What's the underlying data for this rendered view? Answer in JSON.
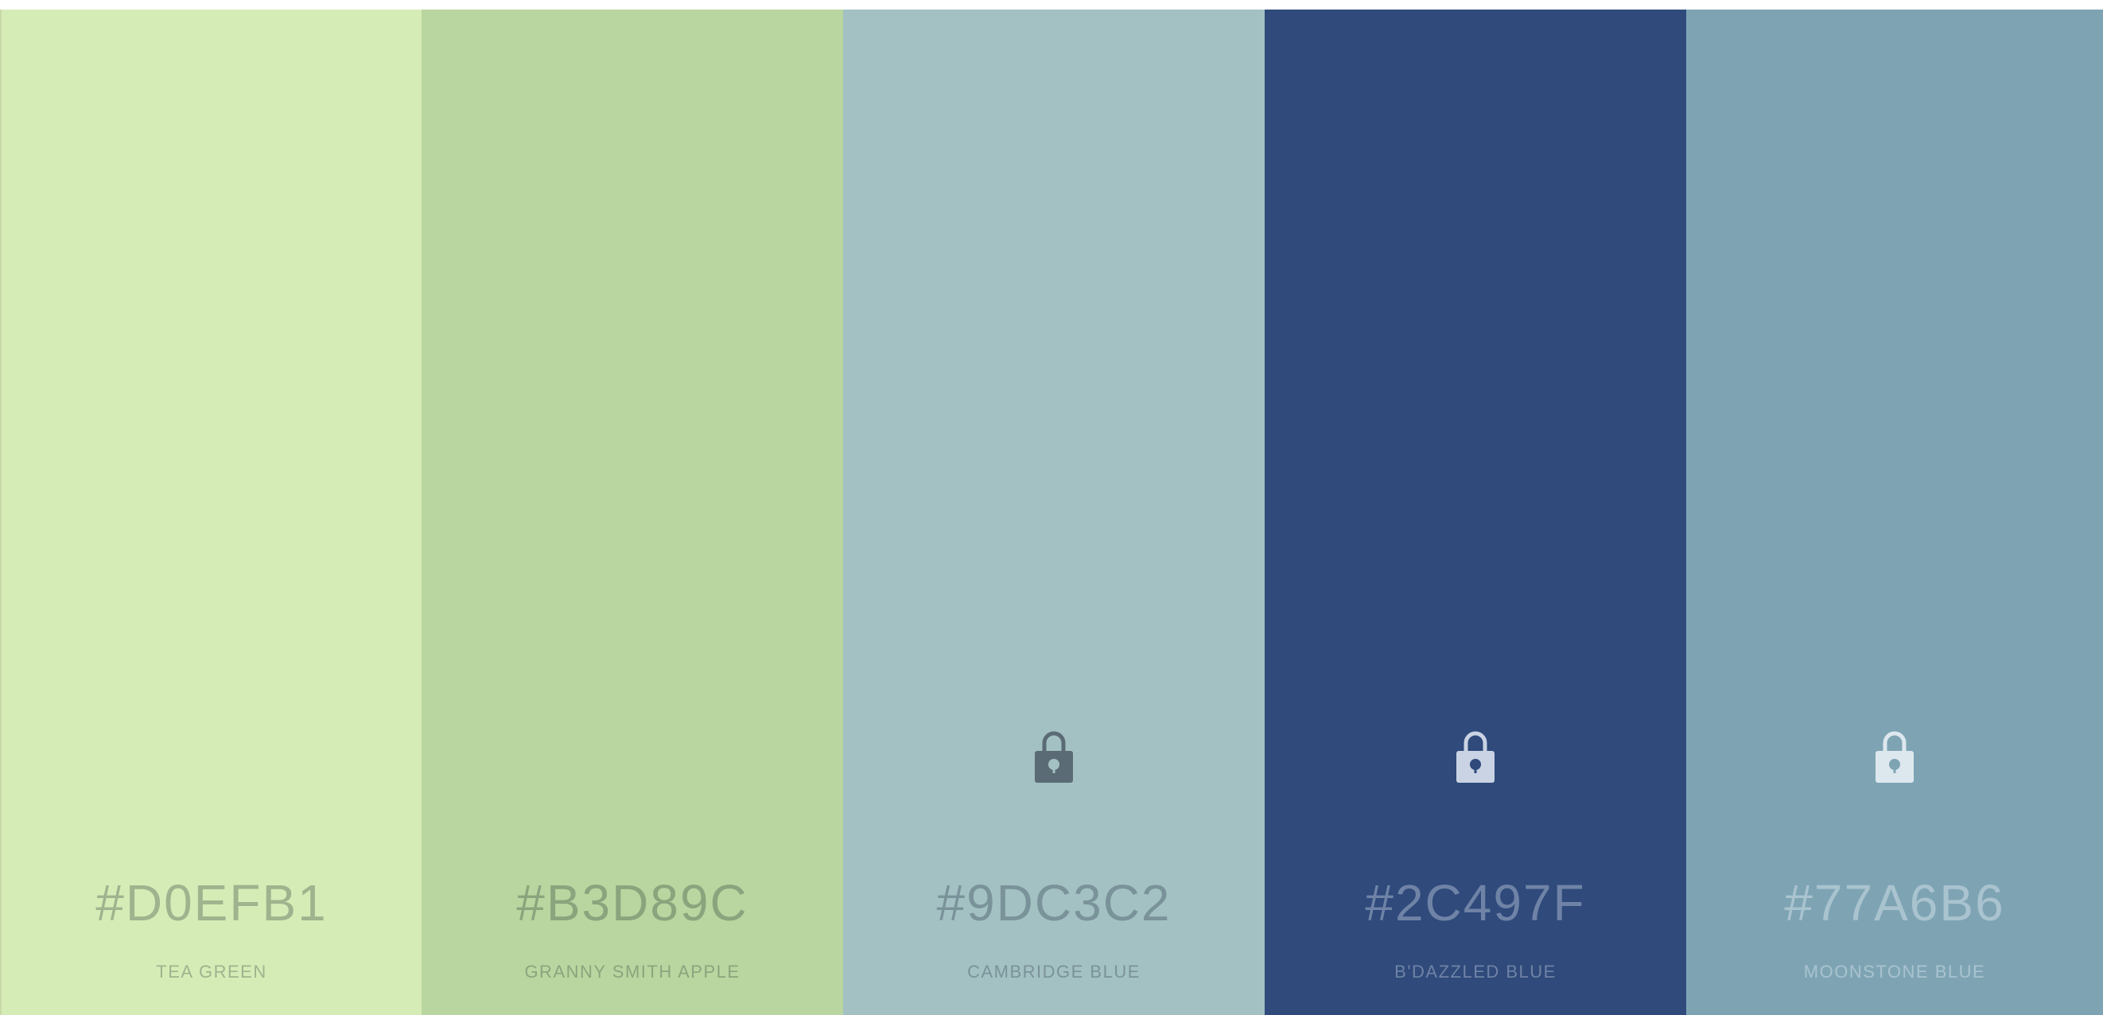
{
  "palette": {
    "swatches": [
      {
        "hex": "#D0EFB1",
        "name": "TEA GREEN",
        "color": "#d6ecb6",
        "text_color": "#9fb38e",
        "locked": false,
        "lock_color": ""
      },
      {
        "hex": "#B3D89C",
        "name": "GRANNY SMITH APPLE",
        "color": "#bad6a0",
        "text_color": "#8aa57d",
        "locked": false,
        "lock_color": ""
      },
      {
        "hex": "#9DC3C2",
        "name": "CAMBRIDGE BLUE",
        "color": "#a3c1c2",
        "text_color": "#7a9299",
        "locked": true,
        "lock_color": "#5b6b76"
      },
      {
        "hex": "#2C497F",
        "name": "B'DAZZLED BLUE",
        "color": "#2f4a7b",
        "text_color": "#6f83a6",
        "locked": true,
        "lock_color": "#c9d3e3"
      },
      {
        "hex": "#77A6B6",
        "name": "MOONSTONE BLUE",
        "color": "#7ea4b4",
        "text_color": "#a9c3cf",
        "locked": true,
        "lock_color": "#dde8ee"
      }
    ]
  }
}
